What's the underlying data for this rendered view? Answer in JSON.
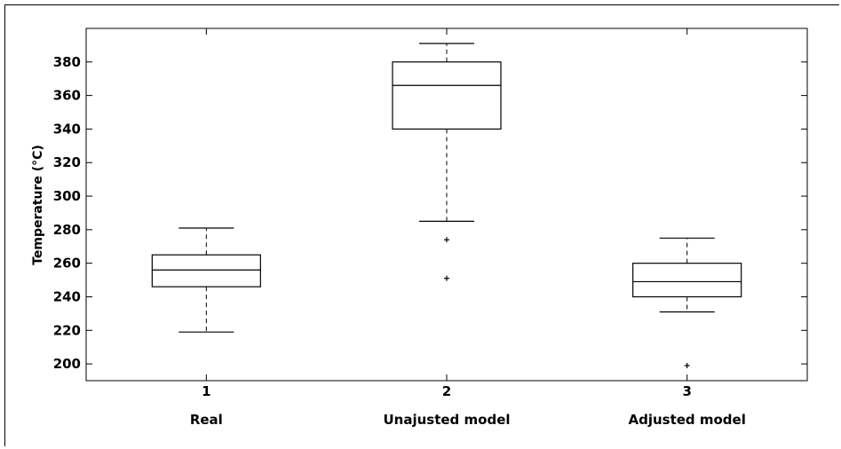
{
  "chart_data": {
    "type": "box",
    "title": "",
    "xlabel": "",
    "ylabel": "Temperature (°C)",
    "ylim": [
      190,
      400
    ],
    "yticks": [
      200,
      220,
      240,
      260,
      280,
      300,
      320,
      340,
      360,
      380
    ],
    "grid": false,
    "series": [
      {
        "position": "1",
        "category": "Real",
        "whisker_low": 219,
        "q1": 246,
        "median": 256,
        "q3": 265,
        "whisker_high": 281,
        "outliers": []
      },
      {
        "position": "2",
        "category": "Unajusted model",
        "whisker_low": 285,
        "q1": 340,
        "median": 366,
        "q3": 380,
        "whisker_high": 391,
        "outliers": [
          274,
          251
        ]
      },
      {
        "position": "3",
        "category": "Adjusted model",
        "whisker_low": 231,
        "q1": 240,
        "median": 249,
        "q3": 260,
        "whisker_high": 275,
        "outliers": [
          199
        ]
      }
    ]
  }
}
